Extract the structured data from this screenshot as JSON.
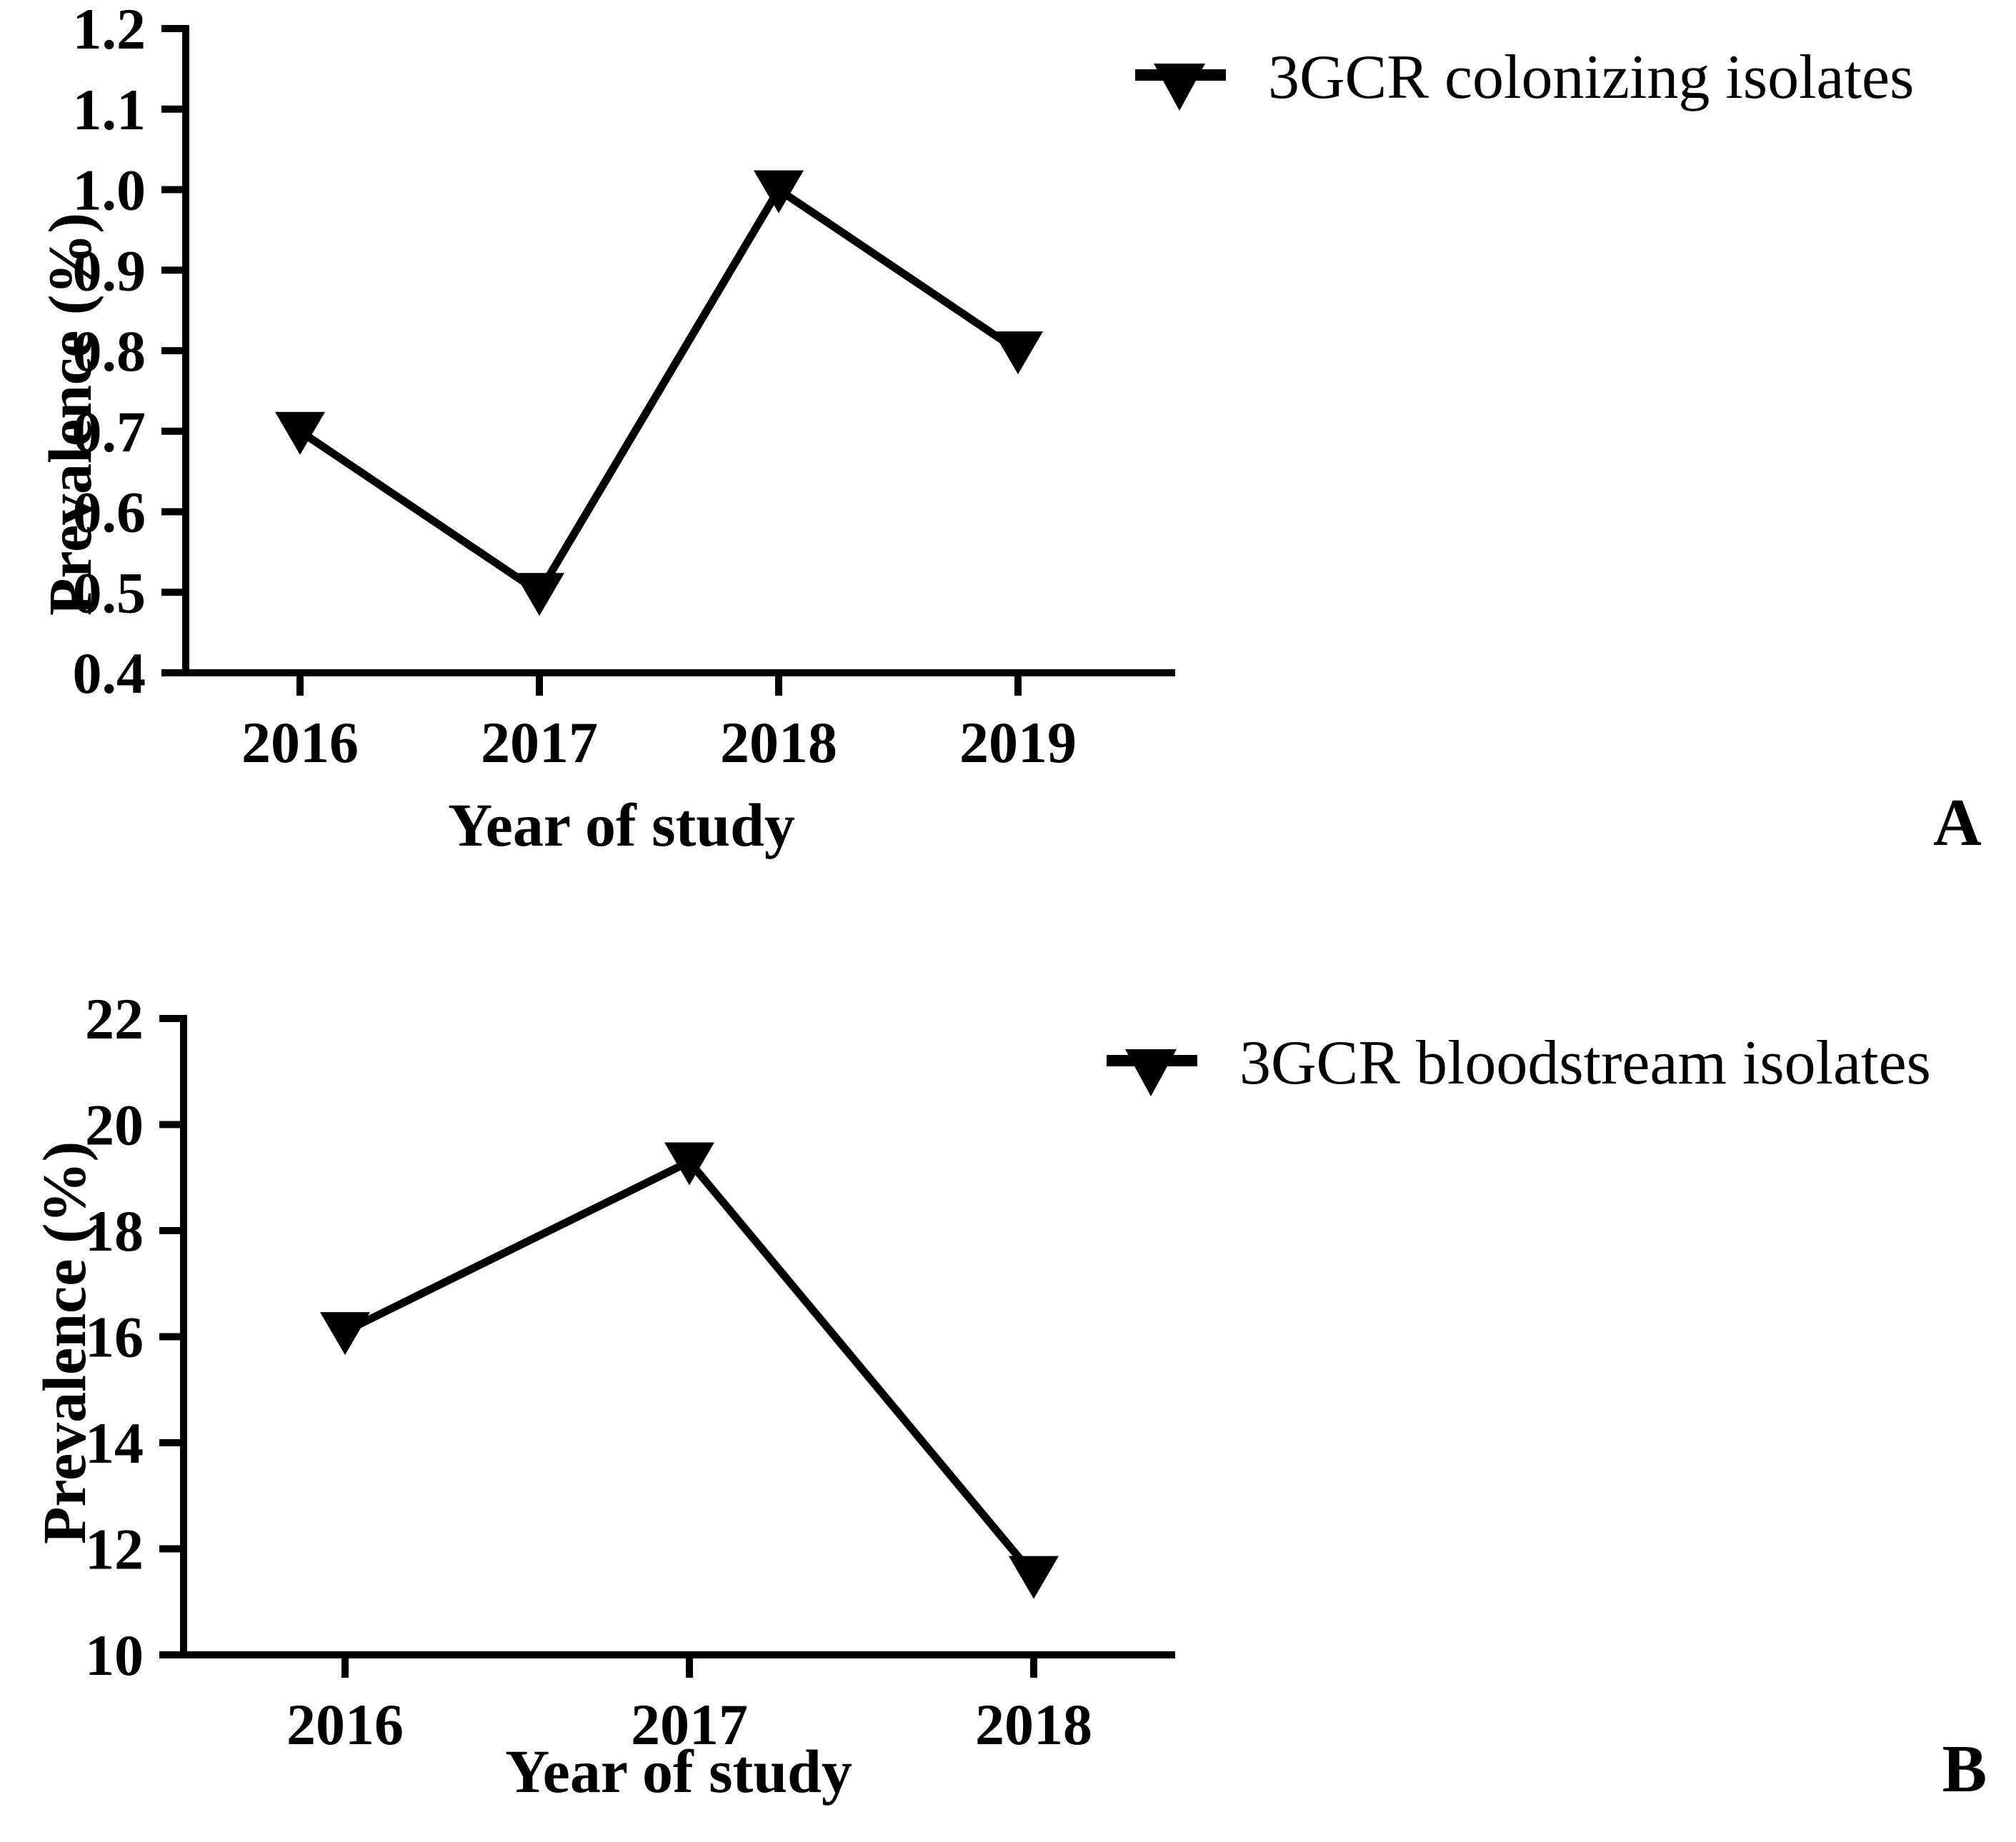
{
  "figure": {
    "background": "#ffffff",
    "ink_color": "#000000"
  },
  "chart_data": [
    {
      "type": "line",
      "panel_label": "A",
      "title": "",
      "categories": [
        "2016",
        "2017",
        "2018",
        "2019"
      ],
      "series": [
        {
          "name": "3GCR colonizing isolates",
          "values": [
            0.7,
            0.5,
            1.0,
            0.8
          ]
        }
      ],
      "xlabel": "Year of study",
      "ylabel": "Prevalence (%)",
      "ylim": [
        0.4,
        1.2
      ],
      "ytick_step": 0.1,
      "ytick_labels": [
        "0.4",
        "0.5",
        "0.6",
        "0.7",
        "0.8",
        "0.9",
        "1.0",
        "1.1",
        "1.2"
      ],
      "grid": false,
      "marker": "triangle-down",
      "line_color": "#000000",
      "legend_position": "top-right"
    },
    {
      "type": "line",
      "panel_label": "B",
      "title": "",
      "categories": [
        "2016",
        "2017",
        "2018"
      ],
      "series": [
        {
          "name": "3GCR bloodstream isolates",
          "values": [
            16.1,
            19.3,
            11.5
          ]
        }
      ],
      "xlabel": "Year of study",
      "ylabel": "Prevalence (%)",
      "ylim": [
        10,
        22
      ],
      "ytick_step": 2,
      "ytick_labels": [
        "10",
        "12",
        "14",
        "16",
        "18",
        "20",
        "22"
      ],
      "grid": false,
      "marker": "triangle-down",
      "line_color": "#000000",
      "legend_position": "top-right"
    }
  ]
}
